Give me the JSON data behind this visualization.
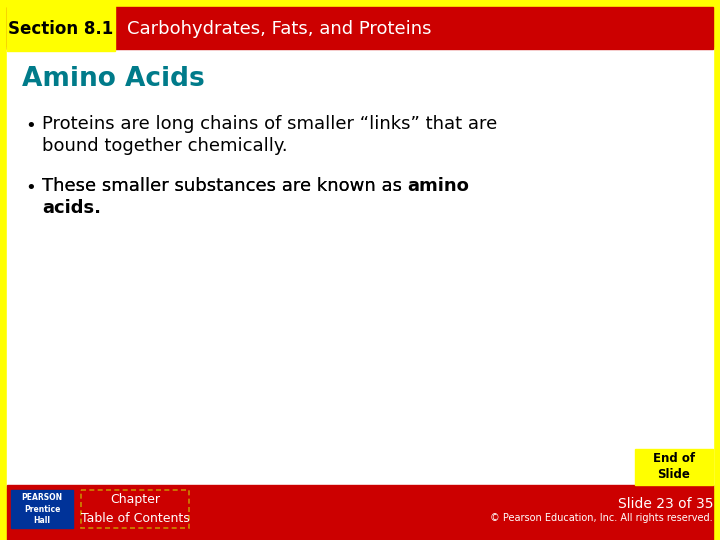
{
  "section_label": "Section 8.1",
  "header_title": "Carbohydrates, Fats, and Proteins",
  "slide_title": "Amino Acids",
  "bullet1_line1": "Proteins are long chains of smaller “links” that are",
  "bullet1_line2": "bound together chemically.",
  "bullet2_line1_prefix": "These smaller substances are known as ",
  "bullet2_line1_bold": "amino",
  "bullet2_line2_bold": "acids",
  "bullet2_line2_suffix": ".",
  "footer_chapter": "Chapter\nTable of Contents",
  "footer_slide": "Slide 23 of 35",
  "footer_copy": "© Pearson Education, Inc. All rights reserved.",
  "end_label_line1": "End of",
  "end_label_line2": "Slide",
  "bg_color": "#ffffff",
  "outer_border_color": "#ffff00",
  "header_bg": "#cc0000",
  "header_text_color": "#ffffff",
  "section_label_bg": "#ffff00",
  "section_label_color": "#000000",
  "title_color": "#007b8a",
  "bullet_color": "#000000",
  "footer_bg": "#cc0000",
  "footer_text_color": "#ffffff",
  "end_bg": "#ffff00",
  "end_text_color": "#000000",
  "pearson_bg": "#003399",
  "pearson_text": "#ffffff"
}
